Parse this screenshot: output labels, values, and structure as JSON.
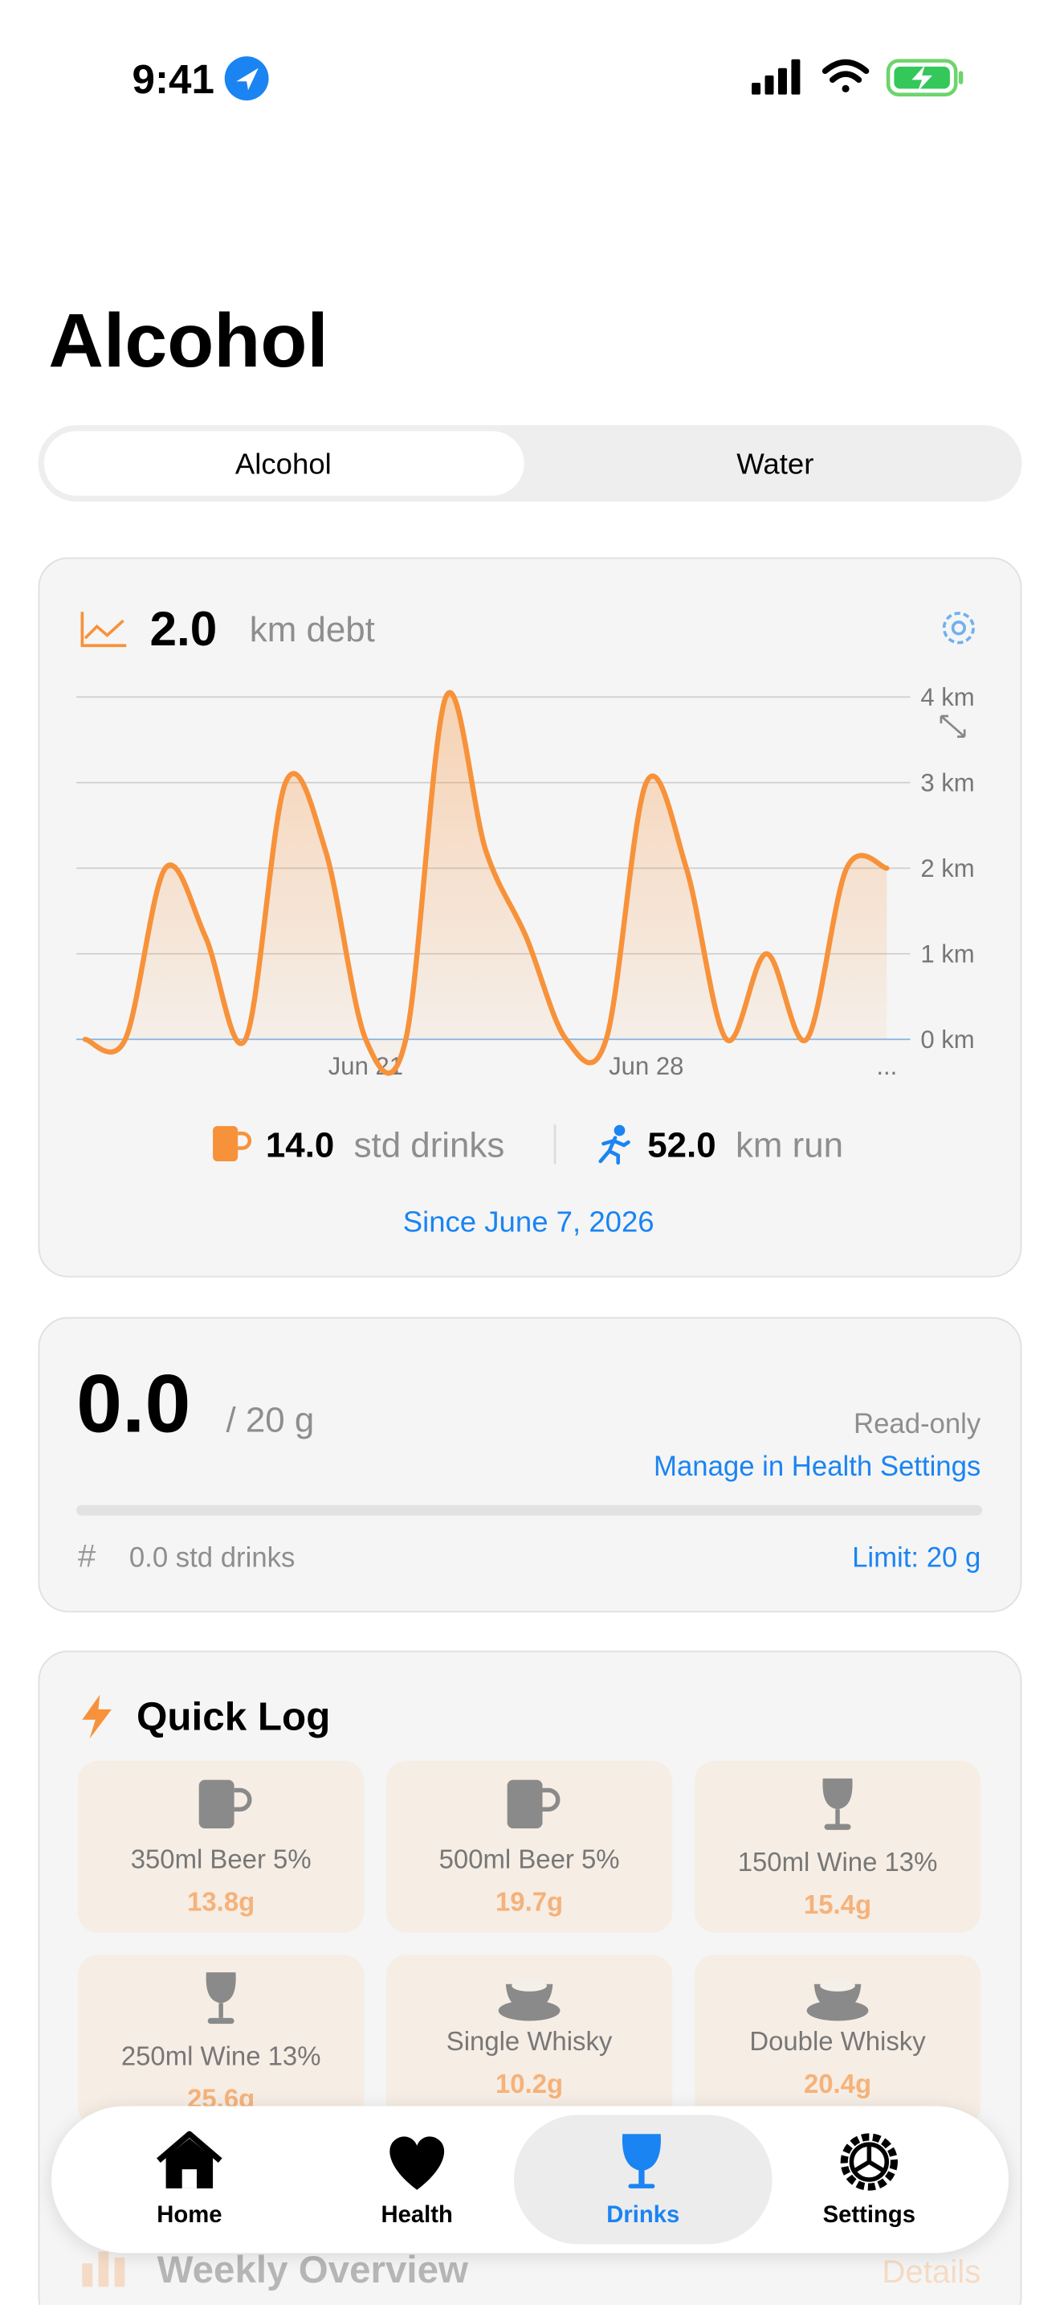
{
  "status_bar": {
    "time": "9:41"
  },
  "header": {
    "title": "Alcohol"
  },
  "tabs": [
    "Alcohol",
    "Water"
  ],
  "debt_card": {
    "value": "2.0",
    "unit": "km debt",
    "drinks_value": "14.0",
    "drinks_unit": "std drinks",
    "run_value": "52.0",
    "run_unit": "km run",
    "since": "Since June 7, 2026"
  },
  "chart_data": {
    "type": "line",
    "categories": [
      null,
      null,
      null,
      null,
      null,
      null,
      null,
      "Jun 21",
      null,
      null,
      null,
      null,
      null,
      null,
      "Jun 28",
      null,
      null,
      null,
      null,
      null,
      "..."
    ],
    "values": [
      0,
      0,
      2,
      1.2,
      0,
      3,
      2.2,
      0,
      0,
      4,
      2.2,
      1.2,
      0,
      0,
      3,
      2,
      0,
      1,
      0,
      2,
      2
    ],
    "color": "#f7923a",
    "ylim": [
      0,
      4
    ],
    "yticks": [
      {
        "value": 0,
        "label": "0 km"
      },
      {
        "value": 1,
        "label": "1 km"
      },
      {
        "value": 2,
        "label": "2 km"
      },
      {
        "value": 3,
        "label": "3 km"
      },
      {
        "value": 4,
        "label": "4 km"
      }
    ],
    "grid": true
  },
  "intake_card": {
    "value": "0.0",
    "limit_text": "/ 20 g",
    "status": "Read-only",
    "link": "Manage in Health Settings",
    "hash": "#",
    "drinks": "0.0 std drinks",
    "limit": "Limit: 20 g"
  },
  "quick_log": {
    "title": "Quick Log",
    "items": [
      {
        "name": "350ml Beer 5%",
        "grams": "13.8g"
      },
      {
        "name": "500ml Beer 5%",
        "grams": "19.7g"
      },
      {
        "name": "150ml Wine 13%",
        "grams": "15.4g"
      },
      {
        "name": "250ml Wine 13%",
        "grams": "25.6g"
      },
      {
        "name": "Single Whisky",
        "grams": "10.2g"
      },
      {
        "name": "Double Whisky",
        "grams": "20.4g"
      }
    ]
  },
  "weekly": {
    "title": "Weekly Overview",
    "details": "Details"
  },
  "tab_bar": [
    "Home",
    "Health",
    "Drinks",
    "Settings"
  ]
}
